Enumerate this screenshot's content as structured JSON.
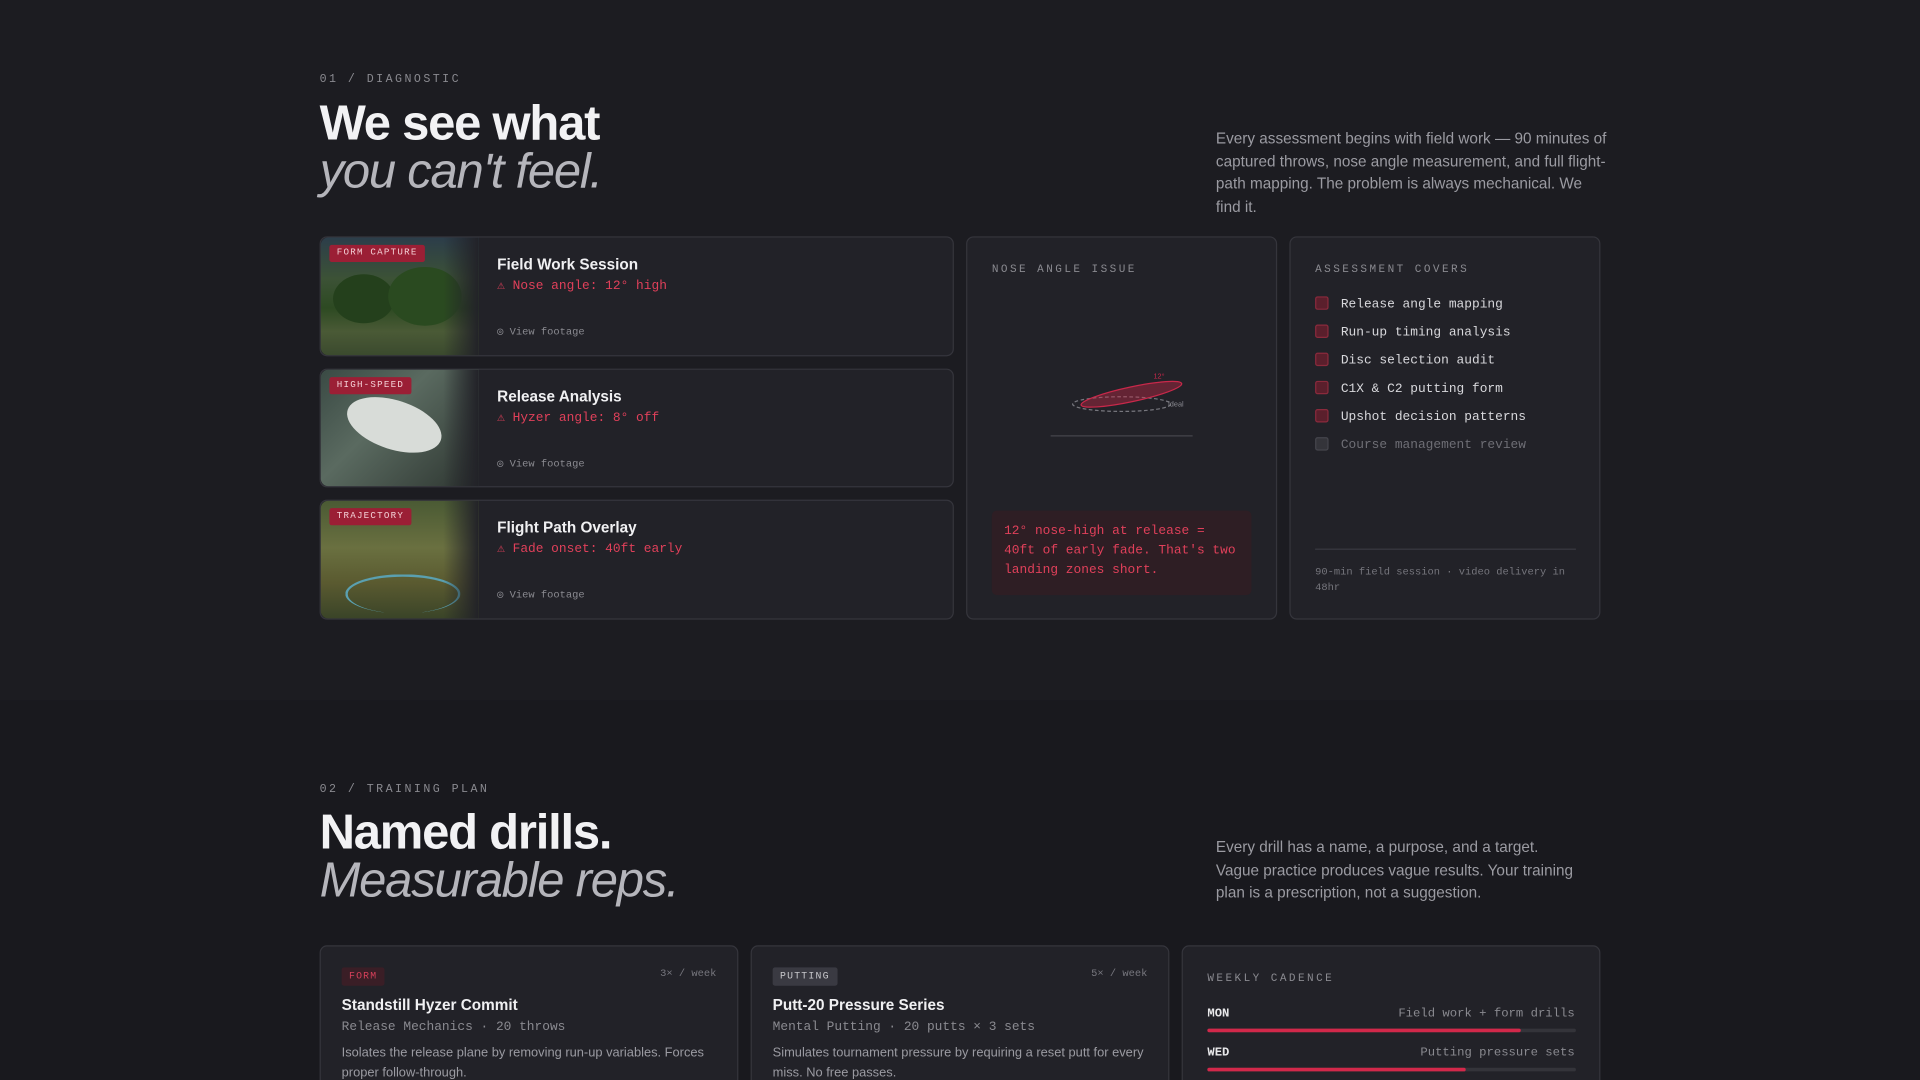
{
  "diagnostic": {
    "eyebrow": "01 / DIAGNOSTIC",
    "title_line1": "We see what",
    "title_line2": "you can't feel.",
    "description": "Every assessment begins with field work — 90 minutes of captured throws, nose angle measurement, and full flight-path mapping. The problem is always mechanical. We find it.",
    "sessions": [
      {
        "tag": "FORM CAPTURE",
        "title": "Field Work Session",
        "issue": "⚠ Nose angle: 12° high",
        "link": "View footage"
      },
      {
        "tag": "HIGH-SPEED",
        "title": "Release Analysis",
        "issue": "⚠ Hyzer angle: 8° off",
        "link": "View footage"
      },
      {
        "tag": "TRAJECTORY",
        "title": "Flight Path Overlay",
        "issue": "⚠ Fade onset: 40ft early",
        "link": "View footage"
      }
    ],
    "nose_angle": {
      "heading": "NOSE ANGLE ISSUE",
      "diagram_labels": [
        "12°",
        "ideal"
      ],
      "callout": "12° nose-high at release = 40ft of early fade. That's two landing zones short."
    },
    "assessment": {
      "heading": "ASSESSMENT COVERS",
      "items": [
        {
          "label": "Release angle mapping",
          "checked": true
        },
        {
          "label": "Run-up timing analysis",
          "checked": true
        },
        {
          "label": "Disc selection audit",
          "checked": true
        },
        {
          "label": "C1X & C2 putting form",
          "checked": true
        },
        {
          "label": "Upshot decision patterns",
          "checked": true
        },
        {
          "label": "Course management review",
          "checked": false
        }
      ],
      "footnote": "90-min field session · video delivery in 48hr"
    }
  },
  "training": {
    "eyebrow": "02 / TRAINING PLAN",
    "title_line1": "Named drills.",
    "title_line2": "Measurable reps.",
    "description": "Every drill has a name, a purpose, and a target. Vague practice produces vague results. Your training plan is a prescription, not a suggestion.",
    "drills": [
      {
        "tag": "FORM",
        "frequency": "3× / week",
        "title": "Standstill Hyzer Commit",
        "meta": "Release Mechanics · 20 throws",
        "description": "Isolates the release plane by removing run-up variables. Forces proper follow-through."
      },
      {
        "tag": "PUTTING",
        "frequency": "5× / week",
        "title": "Putt-20 Pressure Series",
        "meta": "Mental Putting · 20 putts × 3 sets",
        "description": "Simulates tournament pressure by requiring a reset putt for every miss. No free passes."
      }
    ],
    "cadence": {
      "heading": "WEEKLY CADENCE",
      "days": [
        {
          "day": "MON",
          "activity": "Field work + form drills",
          "progress": 85
        },
        {
          "day": "WED",
          "activity": "Putting pressure sets",
          "progress": 70
        }
      ]
    }
  }
}
